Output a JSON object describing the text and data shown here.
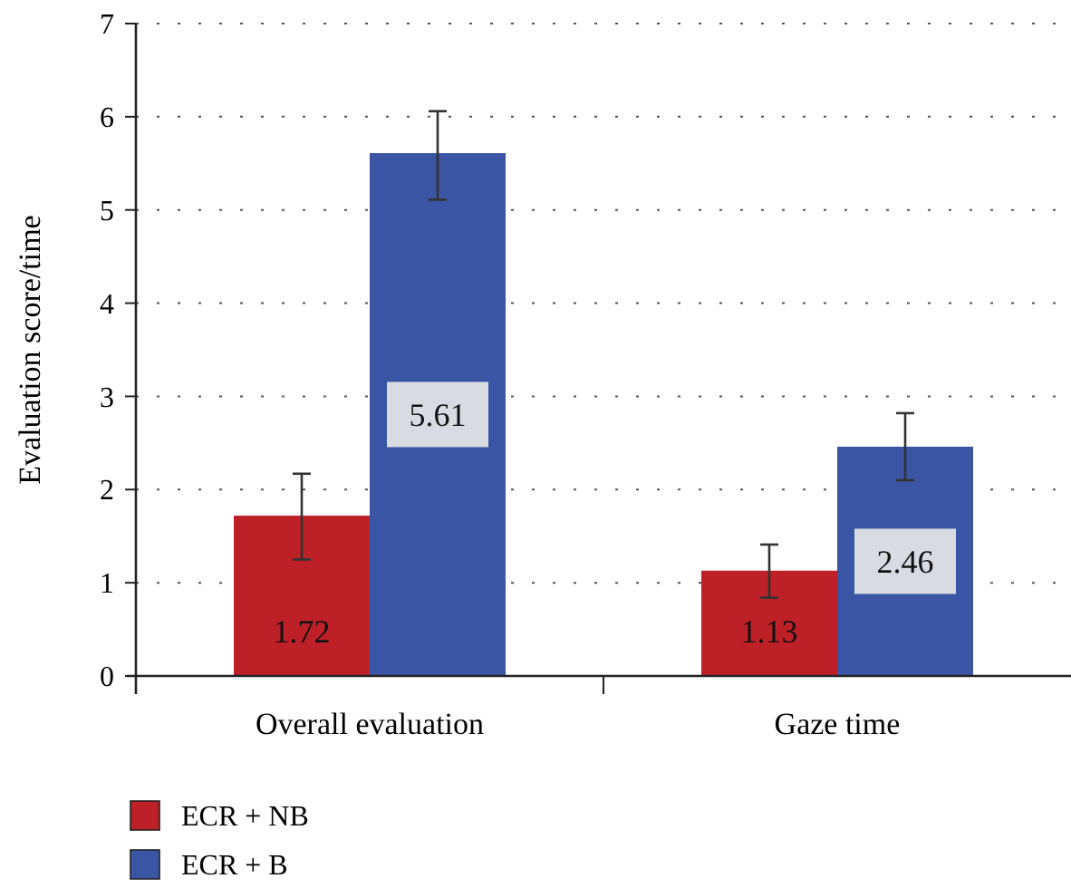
{
  "chart_data": {
    "type": "bar",
    "ylabel": "Evaluation score/time",
    "categories": [
      "Overall evaluation",
      "Gaze time"
    ],
    "series": [
      {
        "name": "ECR + NB",
        "color": "#be2028",
        "values": [
          1.72,
          1.13
        ],
        "errors": [
          [
            1.25,
            2.17
          ],
          [
            0.84,
            1.41
          ]
        ]
      },
      {
        "name": "ECR + B",
        "color": "#3a55a4",
        "values": [
          5.61,
          2.46
        ],
        "errors": [
          [
            5.11,
            6.06
          ],
          [
            2.1,
            2.82
          ]
        ]
      }
    ],
    "ylim": [
      0,
      7
    ],
    "yticks": [
      0,
      1,
      2,
      3,
      4,
      5,
      6,
      7
    ],
    "grid": "y",
    "data_labels": true,
    "legend": "bottom left"
  }
}
